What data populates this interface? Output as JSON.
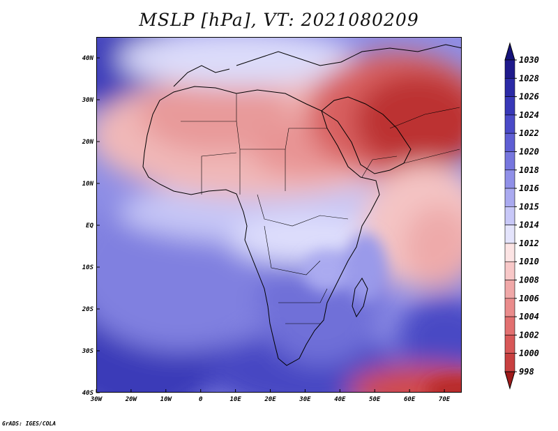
{
  "title": "MSLP [hPa], VT: 2021080209",
  "footer": "GrADS: IGES/COLA",
  "map": {
    "lon_range": [
      -30,
      75
    ],
    "lat_range": [
      -40,
      45
    ],
    "lon_ticks": [
      {
        "value": -30,
        "label": "30W"
      },
      {
        "value": -20,
        "label": "20W"
      },
      {
        "value": -10,
        "label": "10W"
      },
      {
        "value": 0,
        "label": "0"
      },
      {
        "value": 10,
        "label": "10E"
      },
      {
        "value": 20,
        "label": "20E"
      },
      {
        "value": 30,
        "label": "30E"
      },
      {
        "value": 40,
        "label": "40E"
      },
      {
        "value": 50,
        "label": "50E"
      },
      {
        "value": 60,
        "label": "60E"
      },
      {
        "value": 70,
        "label": "70E"
      }
    ],
    "lat_ticks": [
      {
        "value": 40,
        "label": "40N"
      },
      {
        "value": 30,
        "label": "30N"
      },
      {
        "value": 20,
        "label": "20N"
      },
      {
        "value": 10,
        "label": "10N"
      },
      {
        "value": 0,
        "label": "EQ"
      },
      {
        "value": -10,
        "label": "10S"
      },
      {
        "value": -20,
        "label": "20S"
      },
      {
        "value": -30,
        "label": "30S"
      },
      {
        "value": -40,
        "label": "40S"
      }
    ]
  },
  "colorbar": {
    "levels": [
      {
        "label": "1030",
        "color": "#1f1a8c"
      },
      {
        "label": "1028",
        "color": "#2b2aa6"
      },
      {
        "label": "1026",
        "color": "#3838b8"
      },
      {
        "label": "1024",
        "color": "#4a4ac8"
      },
      {
        "label": "1022",
        "color": "#5e5ed4"
      },
      {
        "label": "1020",
        "color": "#7676de"
      },
      {
        "label": "1018",
        "color": "#9090e8"
      },
      {
        "label": "1016",
        "color": "#aaaaf0"
      },
      {
        "label": "1015",
        "color": "#c8c8f8"
      },
      {
        "label": "1014",
        "color": "#e4e4fc"
      },
      {
        "label": "1012",
        "color": "#fce4e4"
      },
      {
        "label": "1010",
        "color": "#f8c8c8"
      },
      {
        "label": "1008",
        "color": "#f0a8a8"
      },
      {
        "label": "1006",
        "color": "#ea8c8c"
      },
      {
        "label": "1004",
        "color": "#e27070"
      },
      {
        "label": "1002",
        "color": "#d85858"
      },
      {
        "label": "1000",
        "color": "#c84040"
      },
      {
        "label": "998",
        "color": "#b22828"
      }
    ],
    "top_color": "#15127a",
    "bottom_color": "#9e1a1a"
  }
}
